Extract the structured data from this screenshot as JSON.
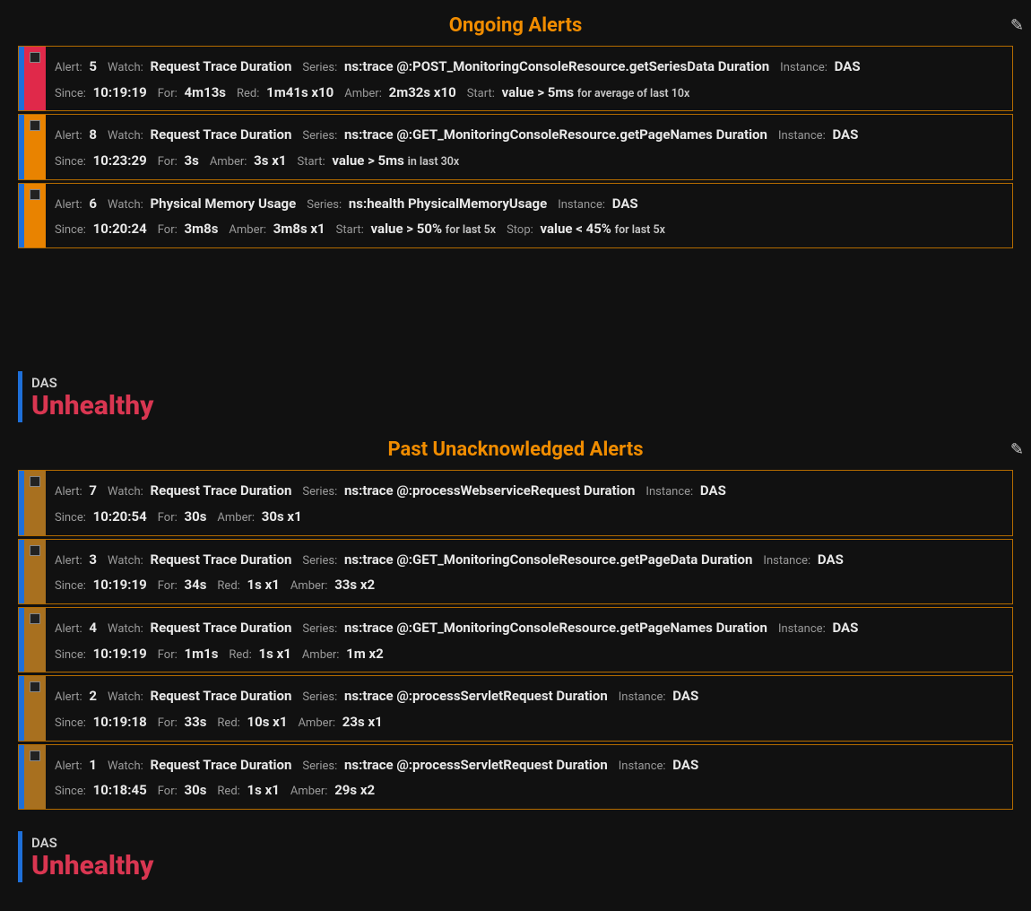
{
  "colors": {
    "accent_blue": "#1e6fd9",
    "severity_red": "#e0294a",
    "severity_amber_live": "#e98300",
    "severity_amber_past": "#a8701f",
    "header_orange": "#f08c00",
    "unhealthy": "#d93651",
    "card_border": "#b36b00"
  },
  "sections": {
    "ongoing": {
      "title": "Ongoing Alerts"
    },
    "past": {
      "title": "Past Unacknowledged Alerts"
    }
  },
  "status1": {
    "name": "DAS",
    "state": "Unhealthy"
  },
  "status2": {
    "name": "DAS",
    "state": "Unhealthy"
  },
  "labels": {
    "alert": "Alert:",
    "watch": "Watch:",
    "series": "Series:",
    "instance": "Instance:",
    "since": "Since:",
    "for": "For:",
    "red": "Red:",
    "amber": "Amber:",
    "start": "Start:",
    "stop": "Stop:"
  },
  "ongoing_alerts": [
    {
      "severity": "red",
      "id": "5",
      "watch": "Request Trace Duration",
      "series": "ns:trace @:POST_MonitoringConsoleResource.getSeriesData Duration",
      "instance": "DAS",
      "since": "10:19:19",
      "for": "4m13s",
      "red": "1m41s x10",
      "amber": "2m32s x10",
      "start_strong": "value > 5ms",
      "start_tail": "for average of last 10x"
    },
    {
      "severity": "amber",
      "id": "8",
      "watch": "Request Trace Duration",
      "series": "ns:trace @:GET_MonitoringConsoleResource.getPageNames Duration",
      "instance": "DAS",
      "since": "10:23:29",
      "for": "3s",
      "amber": "3s x1",
      "start_strong": "value > 5ms",
      "start_tail": "in last 30x"
    },
    {
      "severity": "amber",
      "id": "6",
      "watch": "Physical Memory Usage",
      "series": "ns:health PhysicalMemoryUsage",
      "instance": "DAS",
      "since": "10:20:24",
      "for": "3m8s",
      "amber": "3m8s x1",
      "start_strong": "value > 50%",
      "start_tail": "for last 5x",
      "stop_strong": "value < 45%",
      "stop_tail": "for last 5x"
    }
  ],
  "past_alerts": [
    {
      "id": "7",
      "watch": "Request Trace Duration",
      "series": "ns:trace @:processWebserviceRequest Duration",
      "instance": "DAS",
      "since": "10:20:54",
      "for": "30s",
      "amber": "30s x1"
    },
    {
      "id": "3",
      "watch": "Request Trace Duration",
      "series": "ns:trace @:GET_MonitoringConsoleResource.getPageData Duration",
      "instance": "DAS",
      "since": "10:19:19",
      "for": "34s",
      "red": "1s x1",
      "amber": "33s x2"
    },
    {
      "id": "4",
      "watch": "Request Trace Duration",
      "series": "ns:trace @:GET_MonitoringConsoleResource.getPageNames Duration",
      "instance": "DAS",
      "since": "10:19:19",
      "for": "1m1s",
      "red": "1s x1",
      "amber": "1m x2"
    },
    {
      "id": "2",
      "watch": "Request Trace Duration",
      "series": "ns:trace @:processServletRequest Duration",
      "instance": "DAS",
      "since": "10:19:18",
      "for": "33s",
      "red": "10s x1",
      "amber": "23s x1"
    },
    {
      "id": "1",
      "watch": "Request Trace Duration",
      "series": "ns:trace @:processServletRequest Duration",
      "instance": "DAS",
      "since": "10:18:45",
      "for": "30s",
      "red": "1s x1",
      "amber": "29s x2"
    }
  ]
}
